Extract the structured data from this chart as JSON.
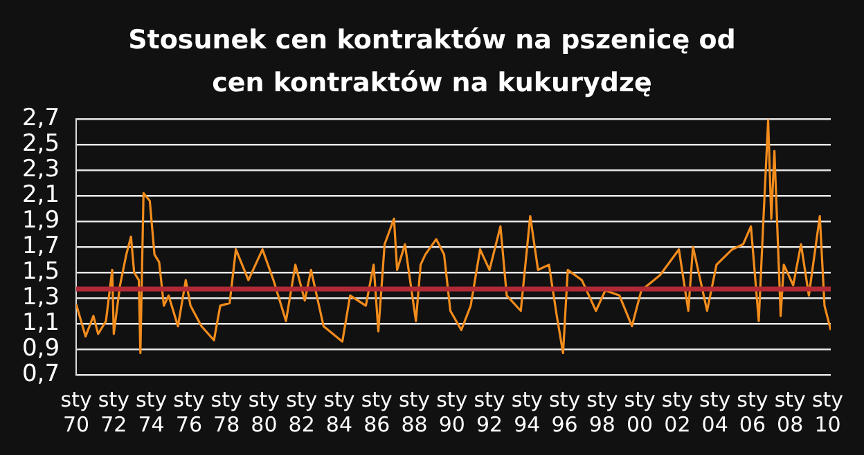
{
  "chart_data": {
    "type": "line",
    "title": "Stosunek cen kontraktów na pszenicę od cen kontraktów na kukurydzę",
    "x": [
      "1970-01",
      "1970-07",
      "1970-12",
      "1971-03",
      "1971-08",
      "1971-12",
      "1972-01",
      "1972-05",
      "1972-09",
      "1972-12",
      "1973-02",
      "1973-05",
      "1973-06",
      "1973-08",
      "1973-12",
      "1974-03",
      "1974-06",
      "1974-09",
      "1974-12",
      "1975-06",
      "1975-11",
      "1976-02",
      "1976-09",
      "1977-05",
      "1977-09",
      "1978-03",
      "1978-07",
      "1979-03",
      "1979-12",
      "1980-07",
      "1981-03",
      "1981-09",
      "1982-03",
      "1982-07",
      "1983-03",
      "1984-03",
      "1984-08",
      "1985-06",
      "1985-11",
      "1986-02",
      "1986-06",
      "1986-12",
      "1987-02",
      "1987-07",
      "1988-02",
      "1988-05",
      "1988-08",
      "1989-03",
      "1989-08",
      "1989-12",
      "1990-07",
      "1991-01",
      "1991-07",
      "1992-01",
      "1992-08",
      "1992-12",
      "1993-09",
      "1994-03",
      "1994-08",
      "1995-03",
      "1995-08",
      "1995-12",
      "1996-03",
      "1996-12",
      "1997-09",
      "1998-03",
      "1998-12",
      "1999-08",
      "2000-02",
      "2001-02",
      "2002-02",
      "2002-08",
      "2002-11",
      "2003-08",
      "2004-02",
      "2004-12",
      "2005-07",
      "2005-12",
      "2006-05",
      "2006-08",
      "2006-11",
      "2007-01",
      "2007-03",
      "2007-07",
      "2007-09",
      "2008-03",
      "2008-08",
      "2009-01",
      "2009-08",
      "2009-11",
      "2010-03"
    ],
    "series": [
      {
        "color": "#f28c1c",
        "values": [
          1.25,
          1.0,
          1.16,
          1.02,
          1.12,
          1.52,
          1.02,
          1.4,
          1.64,
          1.78,
          1.5,
          1.44,
          0.87,
          2.12,
          2.06,
          1.64,
          1.58,
          1.24,
          1.32,
          1.08,
          1.44,
          1.24,
          1.08,
          0.97,
          1.24,
          1.26,
          1.68,
          1.44,
          1.68,
          1.44,
          1.12,
          1.56,
          1.28,
          1.52,
          1.08,
          0.96,
          1.32,
          1.24,
          1.56,
          1.04,
          1.72,
          1.92,
          1.52,
          1.72,
          1.12,
          1.56,
          1.64,
          1.76,
          1.64,
          1.2,
          1.05,
          1.24,
          1.68,
          1.52,
          1.86,
          1.32,
          1.2,
          1.94,
          1.52,
          1.56,
          1.16,
          0.87,
          1.52,
          1.44,
          1.2,
          1.36,
          1.32,
          1.08,
          1.36,
          1.48,
          1.68,
          1.2,
          1.7,
          1.2,
          1.56,
          1.68,
          1.72,
          1.86,
          1.12,
          1.92,
          2.69,
          1.92,
          2.45,
          1.16,
          1.56,
          1.4,
          1.72,
          1.32,
          1.94,
          1.24,
          1.05
        ]
      }
    ],
    "xlim": [
      "1970-01",
      "2010-03"
    ],
    "xticks": [
      {
        "value": "1970-01",
        "label": "sty 70"
      },
      {
        "value": "1972-01",
        "label": "sty 72"
      },
      {
        "value": "1974-01",
        "label": "sty 74"
      },
      {
        "value": "1976-01",
        "label": "sty 76"
      },
      {
        "value": "1978-01",
        "label": "sty 78"
      },
      {
        "value": "1980-01",
        "label": "sty 80"
      },
      {
        "value": "1982-01",
        "label": "sty 82"
      },
      {
        "value": "1984-01",
        "label": "sty 84"
      },
      {
        "value": "1986-01",
        "label": "sty 86"
      },
      {
        "value": "1988-01",
        "label": "sty 88"
      },
      {
        "value": "1990-01",
        "label": "sty 90"
      },
      {
        "value": "1992-01",
        "label": "sty 92"
      },
      {
        "value": "1994-01",
        "label": "sty 94"
      },
      {
        "value": "1996-01",
        "label": "sty 96"
      },
      {
        "value": "1998-01",
        "label": "sty 98"
      },
      {
        "value": "2000-01",
        "label": "sty 00"
      },
      {
        "value": "2002-01",
        "label": "sty 02"
      },
      {
        "value": "2004-01",
        "label": "sty 04"
      },
      {
        "value": "2006-01",
        "label": "sty 06"
      },
      {
        "value": "2008-01",
        "label": "sty 08"
      },
      {
        "value": "2010-01",
        "label": "sty 10"
      }
    ],
    "ylim": [
      0.7,
      2.7
    ],
    "yticks": [
      {
        "value": 0.7,
        "label": "0,7"
      },
      {
        "value": 0.9,
        "label": "0,9"
      },
      {
        "value": 1.1,
        "label": "1,1"
      },
      {
        "value": 1.3,
        "label": "1,3"
      },
      {
        "value": 1.5,
        "label": "1,5"
      },
      {
        "value": 1.7,
        "label": "1,7"
      },
      {
        "value": 1.9,
        "label": "1,9"
      },
      {
        "value": 2.1,
        "label": "2,1"
      },
      {
        "value": 2.3,
        "label": "2,3"
      },
      {
        "value": 2.5,
        "label": "2,5"
      },
      {
        "value": 2.7,
        "label": "2,7"
      }
    ],
    "ref_lines": [
      {
        "axis": "y",
        "value": 1.37,
        "color": "#b02a36"
      }
    ],
    "grid": "y",
    "legend": false,
    "marker": "none",
    "line_style": "solid"
  }
}
